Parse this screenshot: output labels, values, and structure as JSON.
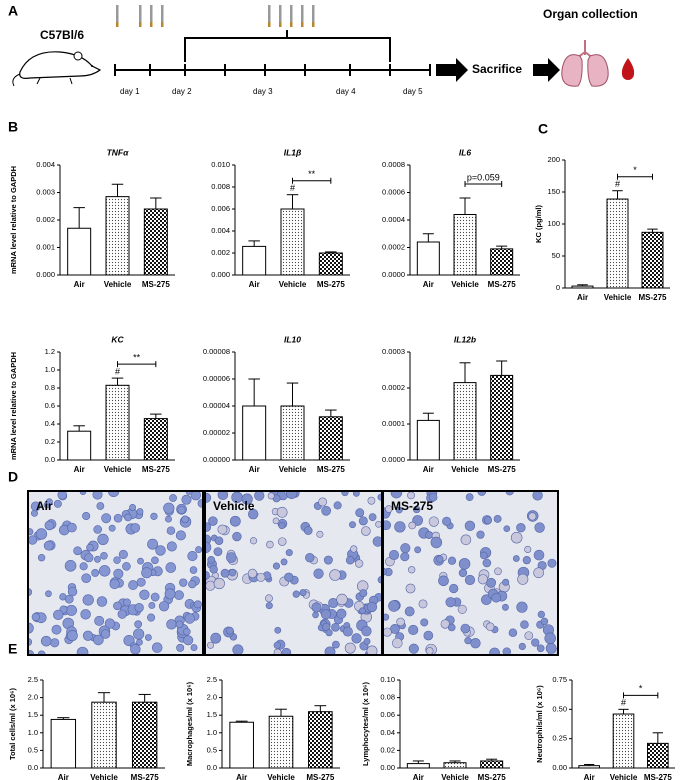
{
  "panel_labels": [
    "A",
    "B",
    "C",
    "D",
    "E"
  ],
  "timeline": {
    "strain": "C57Bl/6",
    "days": [
      "day 1",
      "day 2",
      "day 3",
      "day 4",
      "day 5"
    ],
    "sacrifice": "Sacrifice",
    "collection": "Organ collection"
  },
  "micrographs": [
    "Air",
    "Vehicle",
    "MS-275"
  ],
  "chart_data": [
    {
      "type": "bar",
      "title": "TNFα",
      "ylabel": "mRNA level relative to GAPDH",
      "categories": [
        "Air",
        "Vehicle",
        "MS-275"
      ],
      "values": [
        0.0017,
        0.00285,
        0.0024
      ],
      "errors": [
        0.00075,
        0.00045,
        0.0004
      ],
      "fills": [
        "white",
        "dots",
        "checker"
      ],
      "ylim": [
        0,
        0.004
      ],
      "yticks": [
        {
          "value": 0,
          "label": "0.000"
        },
        0.001,
        0.002,
        0.003,
        0.004
      ]
    },
    {
      "type": "bar",
      "title": "IL1β",
      "categories": [
        "Air",
        "Vehicle",
        "MS-275"
      ],
      "values": [
        0.0026,
        0.006,
        0.002
      ],
      "errors": [
        0.0005,
        0.0013,
        0.0001
      ],
      "fills": [
        "white",
        "dots",
        "checker"
      ],
      "ylim": [
        0,
        0.01
      ],
      "yticks": [
        {
          "value": 0,
          "label": "0.000"
        },
        0.002,
        0.004,
        0.006,
        0.008,
        {
          "value": 0.01,
          "label": "0.010"
        }
      ],
      "annotations": [
        {
          "text": "#",
          "category": "Vehicle"
        }
      ],
      "brackets": [
        {
          "text": "**",
          "categories": [
            "Vehicle",
            "MS-275"
          ]
        }
      ]
    },
    {
      "type": "bar",
      "title": "IL6",
      "categories": [
        "Air",
        "Vehicle",
        "MS-275"
      ],
      "values": [
        0.00024,
        0.00044,
        0.00019
      ],
      "errors": [
        6e-05,
        0.00012,
        2e-05
      ],
      "fills": [
        "white",
        "dots",
        "checker"
      ],
      "ylim": [
        0,
        0.0008
      ],
      "yticks": [
        {
          "value": 0,
          "label": "0.0000"
        },
        0.0002,
        0.0004,
        0.0006,
        0.0008
      ],
      "brackets": [
        {
          "text": "p=0.059",
          "categories": [
            "Vehicle",
            "MS-275"
          ]
        }
      ]
    },
    {
      "type": "bar",
      "ylabel": "KC (pg/ml)",
      "categories": [
        "Air",
        "Vehicle",
        "MS-275"
      ],
      "values": [
        3,
        139,
        87
      ],
      "errors": [
        2,
        13,
        5
      ],
      "fills": [
        "white",
        "dots",
        "checker"
      ],
      "ylim": [
        0,
        200
      ],
      "yticks": [
        0,
        50,
        100,
        150,
        200
      ],
      "annotations": [
        {
          "text": "#",
          "category": "Vehicle"
        }
      ],
      "brackets": [
        {
          "text": "*",
          "categories": [
            "Vehicle",
            "MS-275"
          ]
        }
      ]
    },
    {
      "type": "bar",
      "title": "KC",
      "ylabel": "mRNA level relative to GAPDH",
      "categories": [
        "Air",
        "Vehicle",
        "MS-275"
      ],
      "values": [
        0.32,
        0.83,
        0.46
      ],
      "errors": [
        0.06,
        0.08,
        0.05
      ],
      "fills": [
        "white",
        "dots",
        "checker"
      ],
      "ylim": [
        0,
        1.2
      ],
      "yticks": [
        {
          "value": 0,
          "label": "0.0"
        },
        0.2,
        0.4,
        0.6,
        0.8,
        {
          "value": 1,
          "label": "1.0"
        },
        1.2
      ],
      "annotations": [
        {
          "text": "#",
          "category": "Vehicle"
        }
      ],
      "brackets": [
        {
          "text": "**",
          "categories": [
            "Vehicle",
            "MS-275"
          ]
        }
      ]
    },
    {
      "type": "bar",
      "title": "IL10",
      "categories": [
        "Air",
        "Vehicle",
        "MS-275"
      ],
      "values": [
        4e-05,
        4e-05,
        3.2e-05
      ],
      "errors": [
        2e-05,
        1.7e-05,
        5e-06
      ],
      "fills": [
        "white",
        "dots",
        "checker"
      ],
      "ylim": [
        0,
        8e-05
      ],
      "yticks": [
        {
          "value": 0,
          "label": "0.00000"
        },
        {
          "value": 2e-05,
          "label": "0.00002"
        },
        {
          "value": 4e-05,
          "label": "0.00004"
        },
        {
          "value": 6e-05,
          "label": "0.00006"
        },
        {
          "value": 8e-05,
          "label": "0.00008"
        }
      ]
    },
    {
      "type": "bar",
      "title": "IL12b",
      "categories": [
        "Air",
        "Vehicle",
        "MS-275"
      ],
      "values": [
        0.00011,
        0.000215,
        0.000235
      ],
      "errors": [
        2e-05,
        5.5e-05,
        4e-05
      ],
      "fills": [
        "white",
        "dots",
        "checker"
      ],
      "ylim": [
        0,
        0.0003
      ],
      "yticks": [
        {
          "value": 0,
          "label": "0.0000"
        },
        0.0001,
        0.0002,
        0.0003
      ]
    },
    {
      "type": "bar",
      "ylabel": "Total cells/ml (x 10⁶)",
      "categories": [
        "Air",
        "Vehicle",
        "MS-275"
      ],
      "values": [
        1.38,
        1.87,
        1.87
      ],
      "errors": [
        0.05,
        0.27,
        0.22
      ],
      "fills": [
        "white",
        "dots",
        "checker"
      ],
      "ylim": [
        0,
        2.5
      ],
      "yticks": [
        {
          "value": 0,
          "label": "0.0"
        },
        0.5,
        {
          "value": 1,
          "label": "1.0"
        },
        1.5,
        {
          "value": 2,
          "label": "2.0"
        },
        2.5
      ]
    },
    {
      "type": "bar",
      "ylabel": "Macrophages/ml (x 10⁶)",
      "categories": [
        "Air",
        "Vehicle",
        "MS-275"
      ],
      "values": [
        1.3,
        1.47,
        1.6
      ],
      "errors": [
        0.03,
        0.2,
        0.17
      ],
      "fills": [
        "white",
        "dots",
        "checker"
      ],
      "ylim": [
        0,
        2.5
      ],
      "yticks": [
        {
          "value": 0,
          "label": "0.0"
        },
        0.5,
        {
          "value": 1,
          "label": "1.0"
        },
        1.5,
        {
          "value": 2,
          "label": "2.0"
        },
        2.5
      ]
    },
    {
      "type": "bar",
      "ylabel": "Lymphocytes/ml (x 10⁶)",
      "categories": [
        "Air",
        "Vehicle",
        "MS-275"
      ],
      "values": [
        0.005,
        0.006,
        0.008
      ],
      "errors": [
        0.003,
        0.002,
        0.002
      ],
      "fills": [
        "white",
        "dots",
        "checker"
      ],
      "ylim": [
        0,
        0.1
      ],
      "yticks": [
        {
          "value": 0,
          "label": "0.00"
        },
        0.02,
        0.04,
        0.06,
        0.08,
        {
          "value": 0.1,
          "label": "0.10"
        }
      ]
    },
    {
      "type": "bar",
      "ylabel": "Neutrophils/ml (x 10⁶)",
      "categories": [
        "Air",
        "Vehicle",
        "MS-275"
      ],
      "values": [
        0.02,
        0.46,
        0.21
      ],
      "errors": [
        0.01,
        0.04,
        0.09
      ],
      "fills": [
        "white",
        "dots",
        "checker"
      ],
      "ylim": [
        0,
        0.75
      ],
      "yticks": [
        {
          "value": 0,
          "label": "0.00"
        },
        0.25,
        {
          "value": 0.5,
          "label": "0.50"
        },
        0.75
      ],
      "annotations": [
        {
          "text": "#",
          "category": "Vehicle"
        }
      ],
      "brackets": [
        {
          "text": "*",
          "categories": [
            "Vehicle",
            "MS-275"
          ]
        }
      ]
    }
  ]
}
